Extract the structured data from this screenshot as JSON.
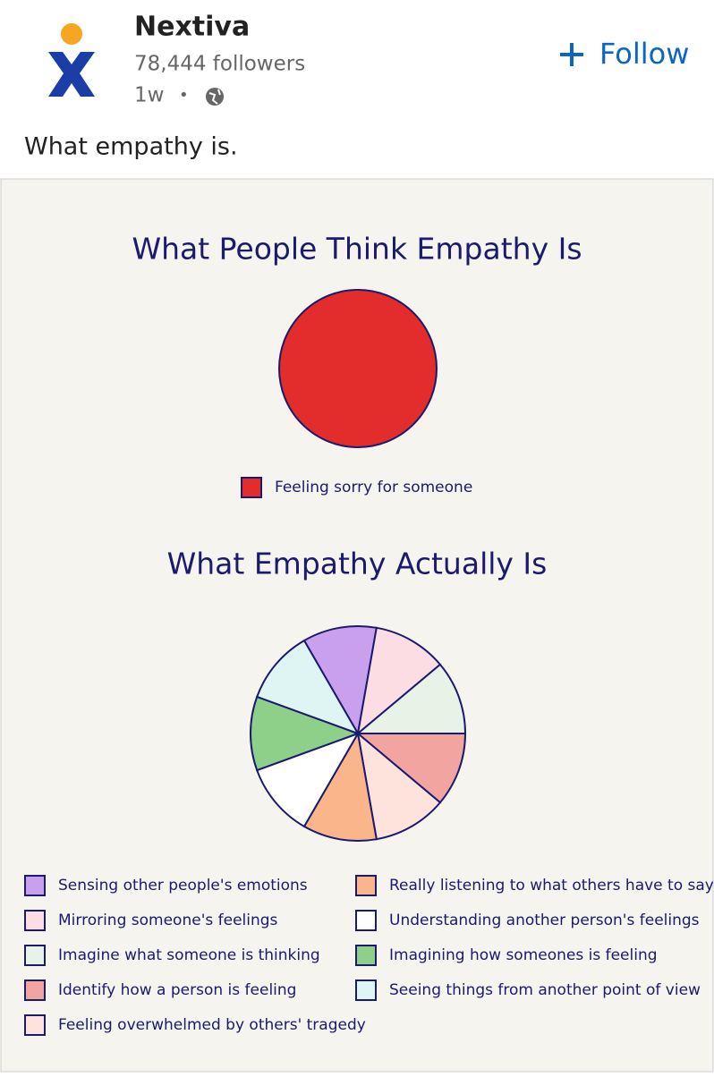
{
  "post": {
    "author": "Nextiva",
    "followers": "78,444 followers",
    "age": "1w",
    "separator": "•",
    "follow": "Follow",
    "text": "What empathy is."
  },
  "chart_data": [
    {
      "type": "pie",
      "title": "What People Think Empathy Is",
      "categories": [
        "Feeling sorry for someone"
      ],
      "values": [
        100
      ],
      "colors": [
        "#e32c2c"
      ]
    },
    {
      "type": "pie",
      "title": "What Empathy Actually Is",
      "categories": [
        "Sensing other people's emotions",
        "Mirroring someone's feelings",
        "Imagine what someone is thinking",
        "Identify how a person is feeling",
        "Feeling overwhelmed by others' tragedy",
        "Really listening to what others have to say",
        "Understanding another person's feelings",
        "Imagining how someones is feeling",
        "Seeing things from another point of view"
      ],
      "values": [
        11.1,
        11.1,
        11.1,
        11.1,
        11.1,
        11.1,
        11.1,
        11.1,
        11.1
      ],
      "colors": [
        "#c9a0ee",
        "#fbdde3",
        "#e6f3e6",
        "#f2a5a0",
        "#fde3dc",
        "#fbb58a",
        "#ffffff",
        "#8ecf8a",
        "#dff5f3"
      ]
    }
  ]
}
